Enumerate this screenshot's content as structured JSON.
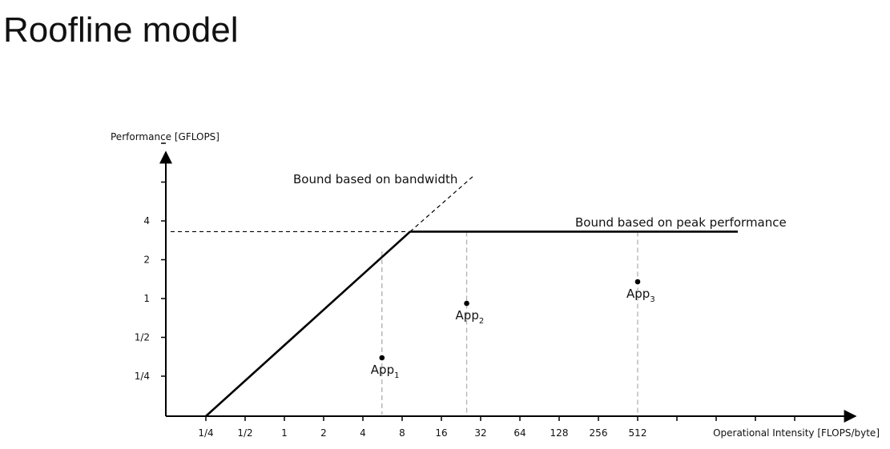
{
  "slide": {
    "title": "Roofline model"
  },
  "chart_data": {
    "type": "line",
    "title": "",
    "xlabel": "Operational Intensity [FLOPS/byte]",
    "ylabel": "Performance [GFLOPS]",
    "x_scale": "log2",
    "y_scale": "log2",
    "x_tick_labels": [
      "1/4",
      "1/2",
      "1",
      "2",
      "4",
      "8",
      "16",
      "32",
      "64",
      "128",
      "256",
      "512",
      "",
      "",
      "",
      ""
    ],
    "y_tick_labels": [
      "1/4",
      "1/2",
      "1",
      "2",
      "4",
      "",
      ""
    ],
    "xlim": [
      0.25,
      4096
    ],
    "ylim": [
      0.125,
      32
    ],
    "bandwidth_bound": {
      "label": "Bound based on bandwidth",
      "x": [
        0.25,
        9.2
      ],
      "y": [
        0.125,
        4.6
      ],
      "dashed_extension_x": [
        9.2,
        24
      ],
      "dashed_extension_y": [
        4.6,
        12
      ]
    },
    "peak_bound": {
      "label": "Bound based on peak performance",
      "x": [
        9.2,
        3000
      ],
      "y": [
        3.3,
        3.3
      ]
    },
    "points": [
      {
        "name": "App",
        "subscript": "1",
        "x": 5.6,
        "y": 0.21
      },
      {
        "name": "App",
        "subscript": "2",
        "x": 25,
        "y": 0.87
      },
      {
        "name": "App",
        "subscript": "3",
        "x": 512,
        "y": 1.18
      }
    ],
    "colors": {
      "line": "#000000",
      "guide": "#b0b0b0"
    }
  }
}
